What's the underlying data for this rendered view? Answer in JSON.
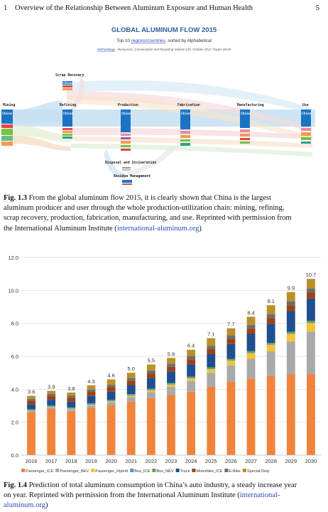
{
  "header": {
    "chapter_number": "1",
    "chapter_title": "Overview of the Relationship Between Aluminum Exposure and Human Health",
    "page_number": "5"
  },
  "flow_figure": {
    "title": "GLOBAL ALUMINUM FLOW 2015",
    "subtitle_prefix": "Top 10 ",
    "subtitle_link": "regions/countries",
    "subtitle_suffix": ", sorted by Alphabetical",
    "methodology_link": "Methodology",
    "methodology_text": " - Resources, Conservation and Recycling Volume 125, October 2017, Pages 48-69",
    "stages": [
      "Mining",
      "Refining",
      "Production",
      "Fabrication",
      "Manufacturing",
      "Use"
    ],
    "scrap_label": "Scrap Recovery",
    "disposal_label": "Disposal and Incineration",
    "residue_label": "Residue Management",
    "node_label": "China",
    "colors": {
      "china": "#1a74c4",
      "band": "#bcd9ee",
      "title": "#2c5f9e"
    }
  },
  "caption_1_3": {
    "label": "Fig. 1.3",
    "lines": [
      "From the global aluminum flow 2015, it is clearly shown that China is the largest",
      "aluminum producer and user through the whole production-utilization chain: mining, refining,",
      "scrap recovery, production, fabrication, manufacturing, and use. Reprinted with permission from"
    ],
    "last_prefix": "the International Aluminum Institute (",
    "last_link": "international-aluminum.org",
    "last_suffix": ")"
  },
  "chart_data": {
    "type": "bar",
    "stacked": true,
    "categories": [
      "2016",
      "2017",
      "2018",
      "2019",
      "2020",
      "2021",
      "2022",
      "2023",
      "2024",
      "2025",
      "2026",
      "2027",
      "2028",
      "2029",
      "2030"
    ],
    "totals": [
      3.6,
      3.9,
      3.8,
      4.3,
      4.6,
      5.0,
      5.5,
      5.9,
      6.4,
      7.1,
      7.7,
      8.4,
      9.1,
      9.9,
      10.7
    ],
    "ylim": [
      0,
      12
    ],
    "yticks": [
      "0.0",
      "2.0",
      "4.0",
      "6.0",
      "8.0",
      "10.0",
      "12.0"
    ],
    "grid": true,
    "legend_position": "bottom",
    "series": [
      {
        "name": "Passenger_ICE",
        "color": "#f0843c",
        "values": [
          2.6,
          2.8,
          2.65,
          2.85,
          3.0,
          3.25,
          3.45,
          3.65,
          3.85,
          4.15,
          4.45,
          4.65,
          4.8,
          4.9,
          4.9
        ]
      },
      {
        "name": "Passenger_BEV",
        "color": "#a9a9a9",
        "values": [
          0.08,
          0.1,
          0.12,
          0.15,
          0.2,
          0.28,
          0.38,
          0.5,
          0.65,
          0.85,
          1.0,
          1.2,
          1.5,
          2.0,
          2.6
        ]
      },
      {
        "name": "Passenger_Hybrid",
        "color": "#f7c234",
        "values": [
          0.02,
          0.03,
          0.04,
          0.05,
          0.06,
          0.08,
          0.1,
          0.13,
          0.16,
          0.22,
          0.28,
          0.34,
          0.4,
          0.46,
          0.52
        ]
      },
      {
        "name": "Bus_ICE",
        "color": "#5a8ed1",
        "values": [
          0.05,
          0.05,
          0.05,
          0.05,
          0.05,
          0.05,
          0.05,
          0.05,
          0.05,
          0.05,
          0.05,
          0.05,
          0.05,
          0.05,
          0.05
        ]
      },
      {
        "name": "Bus_NEV",
        "color": "#5ea845",
        "values": [
          0.03,
          0.03,
          0.03,
          0.04,
          0.04,
          0.04,
          0.05,
          0.05,
          0.05,
          0.06,
          0.06,
          0.07,
          0.07,
          0.08,
          0.08
        ]
      },
      {
        "name": "Truck",
        "color": "#1f4f8f",
        "values": [
          0.3,
          0.35,
          0.35,
          0.45,
          0.5,
          0.55,
          0.65,
          0.7,
          0.75,
          0.8,
          0.9,
          1.05,
          1.15,
          1.25,
          1.35
        ]
      },
      {
        "name": "Motorbike_ICE",
        "color": "#9c4219",
        "values": [
          0.22,
          0.22,
          0.24,
          0.25,
          0.27,
          0.27,
          0.28,
          0.28,
          0.3,
          0.3,
          0.32,
          0.33,
          0.35,
          0.36,
          0.38
        ]
      },
      {
        "name": "E-Bike",
        "color": "#6d6d6d",
        "values": [
          0.12,
          0.13,
          0.13,
          0.14,
          0.15,
          0.16,
          0.17,
          0.18,
          0.19,
          0.2,
          0.21,
          0.22,
          0.23,
          0.24,
          0.25
        ]
      },
      {
        "name": "Special-Duty",
        "color": "#b8912a",
        "values": [
          0.18,
          0.19,
          0.19,
          0.26,
          0.33,
          0.32,
          0.37,
          0.36,
          0.4,
          0.47,
          0.43,
          0.49,
          0.55,
          0.56,
          0.57
        ]
      }
    ]
  },
  "caption_1_4": {
    "label": "Fig. 1.4",
    "line1": "Prediction of total aluminum consumption in China’s auto industry, a steady increase year",
    "line2_prefix": "on year. Reprinted with permission from the International Aluminum Institute (",
    "line2_link": "international-",
    "line3_link": "aluminum.org",
    "line3_suffix": ")"
  }
}
